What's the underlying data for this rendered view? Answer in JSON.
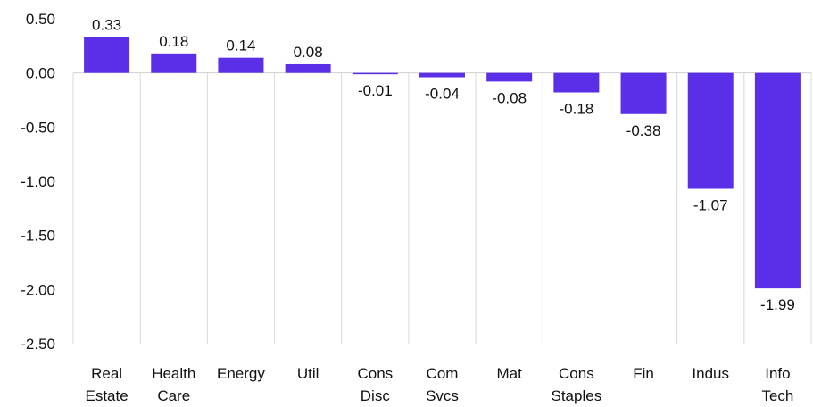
{
  "chart_data": {
    "type": "bar",
    "title": "",
    "xlabel": "",
    "ylabel": "",
    "categories": [
      [
        "Real",
        "Estate"
      ],
      [
        "Health",
        "Care"
      ],
      [
        "Energy"
      ],
      [
        "Util"
      ],
      [
        "Cons",
        "Disc"
      ],
      [
        "Com",
        "Svcs"
      ],
      [
        "Mat"
      ],
      [
        "Cons",
        "Staples"
      ],
      [
        "Fin"
      ],
      [
        "Indus"
      ],
      [
        "Info",
        "Tech"
      ]
    ],
    "values": [
      0.33,
      0.18,
      0.14,
      0.08,
      -0.01,
      -0.04,
      -0.08,
      -0.18,
      -0.38,
      -1.07,
      -1.99
    ],
    "value_labels": [
      "0.33",
      "0.18",
      "0.14",
      "0.08",
      "-0.01",
      "-0.04",
      "-0.08",
      "-0.18",
      "-0.38",
      "-1.07",
      "-1.99"
    ],
    "ylim": [
      -2.5,
      0.5
    ],
    "yticks": [
      0.5,
      0.0,
      -0.5,
      -1.0,
      -1.5,
      -2.0,
      -2.5
    ],
    "ytick_labels": [
      "0.50",
      "0.00",
      "-0.50",
      "-1.00",
      "-1.50",
      "-2.00",
      "-2.50"
    ],
    "grid": false,
    "legend": "none",
    "bar_color": "#5B2EE8",
    "zero_line_color": "#d0d0d0",
    "separator_color": "#d8d8d8"
  }
}
